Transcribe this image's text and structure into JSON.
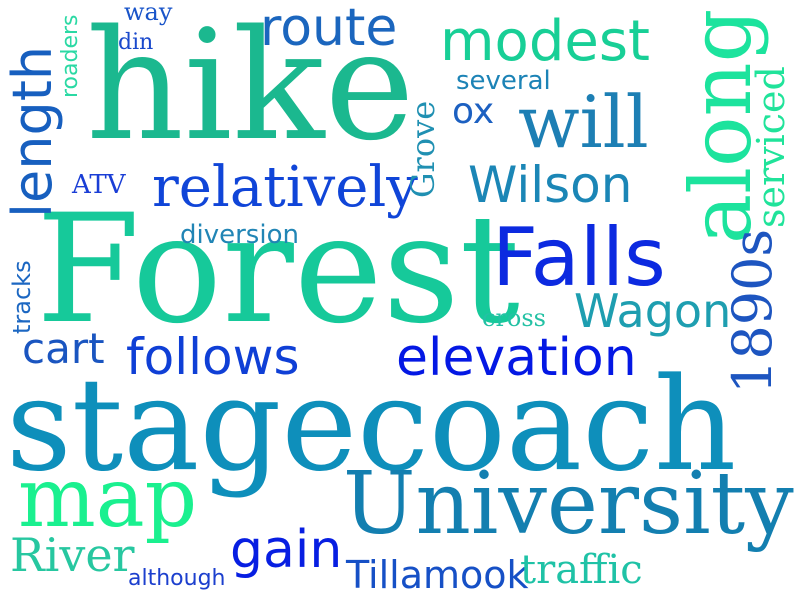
{
  "words": {
    "stagecoach": "stagecoach",
    "forest": "Forest",
    "hike": "hike",
    "university": "University",
    "along": "along",
    "falls": "Falls",
    "map": "map",
    "will": "will",
    "relatively": "relatively",
    "follows": "follows",
    "elevation": "elevation",
    "modest": "modest",
    "route": "route",
    "length": "length",
    "wilson": "Wilson",
    "gain": "gain",
    "wagon": "Wagon",
    "1890s": "1890s",
    "river": "River",
    "grove": "Grove",
    "serviced": "serviced",
    "cart": "cart",
    "tillamook": "Tillamook",
    "traffic": "traffic",
    "ox": "ox",
    "several": "several",
    "diversion": "diversion",
    "atv": "ATV",
    "cross": "cross",
    "tracks": "tracks",
    "roaders": "roaders",
    "way": "way",
    "din": "din",
    "although": "although"
  },
  "colors": {
    "stagecoach": "#0e8fbb",
    "forest": "#16c99a",
    "hike": "#1bb88f",
    "university": "#137fb0",
    "along": "#1ce39d",
    "falls": "#0c2ae0",
    "map": "#1af08f",
    "will": "#1d7fb4",
    "relatively": "#1045d8",
    "follows": "#0f3fd6",
    "elevation": "#0418e4",
    "modest": "#18cf96",
    "route": "#1b66be",
    "length": "#175fbf",
    "wilson": "#1b86b6",
    "gain": "#071ee2",
    "wagon": "#1e9eb0",
    "1890s": "#1d55c0",
    "river": "#27c7a0",
    "grove": "#2090b2",
    "serviced": "#20e39a",
    "cart": "#1a55c0",
    "tillamook": "#1650c6",
    "traffic": "#1fc2a6",
    "ox": "#1c60c1",
    "several": "#1c83b6",
    "diversion": "#2185b5",
    "atv": "#1a3ed6",
    "cross": "#23c1a4",
    "tracks": "#1c67c2",
    "roaders": "#2bd9a4",
    "way": "#1954c9",
    "din": "#1a49cc",
    "although": "#1c3fce"
  }
}
